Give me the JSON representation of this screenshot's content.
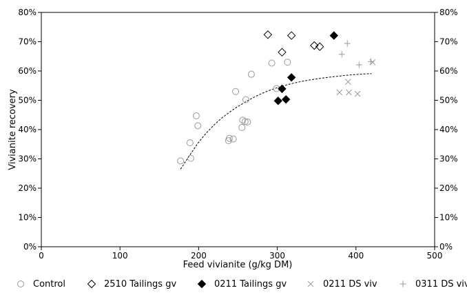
{
  "chart_data": {
    "type": "scatter",
    "title": "",
    "xlabel": "Feed vivianite (g/kg DM)",
    "ylabel": "Vivianite recovery",
    "xlim": [
      0,
      500
    ],
    "ylim": [
      0,
      0.8
    ],
    "x_ticks": [
      0,
      100,
      200,
      300,
      400,
      500
    ],
    "y_ticks": [
      0,
      0.1,
      0.2,
      0.3,
      0.4,
      0.5,
      0.6,
      0.7,
      0.8
    ],
    "x_tick_labels": [
      "0",
      "100",
      "200",
      "300",
      "400",
      "500"
    ],
    "y_tick_labels": [
      "0%",
      "10%",
      "20%",
      "30%",
      "40%",
      "50%",
      "60%",
      "70%",
      "80%"
    ],
    "secondary_y_axis": true,
    "grid": false,
    "legend_position": "bottom",
    "series": [
      {
        "name": "Control",
        "marker": "open-circle",
        "color": "#999999",
        "points": [
          [
            177,
            0.293
          ],
          [
            189,
            0.355
          ],
          [
            190,
            0.302
          ],
          [
            197,
            0.447
          ],
          [
            199,
            0.413
          ],
          [
            238,
            0.362
          ],
          [
            239,
            0.37
          ],
          [
            244,
            0.368
          ],
          [
            247,
            0.53
          ],
          [
            255,
            0.407
          ],
          [
            256,
            0.432
          ],
          [
            259,
            0.427
          ],
          [
            260,
            0.502
          ],
          [
            262,
            0.426
          ],
          [
            267,
            0.589
          ],
          [
            293,
            0.627
          ],
          [
            299,
            0.54
          ],
          [
            313,
            0.63
          ]
        ]
      },
      {
        "name": "2510 Tailings gv",
        "marker": "open-diamond",
        "color": "#000000",
        "points": [
          [
            288,
            0.724
          ],
          [
            306,
            0.664
          ],
          [
            318,
            0.721
          ],
          [
            347,
            0.687
          ],
          [
            354,
            0.683
          ]
        ]
      },
      {
        "name": "0211 Tailings gv",
        "marker": "filled-diamond",
        "color": "#000000",
        "points": [
          [
            301,
            0.498
          ],
          [
            306,
            0.539
          ],
          [
            311,
            0.503
          ],
          [
            318,
            0.578
          ],
          [
            372,
            0.721
          ]
        ]
      },
      {
        "name": "0211 DS viv",
        "marker": "x",
        "color": "#999999",
        "points": [
          [
            379,
            0.527
          ],
          [
            390,
            0.563
          ],
          [
            391,
            0.527
          ],
          [
            402,
            0.522
          ],
          [
            421,
            0.63
          ]
        ]
      },
      {
        "name": "0311 DS viv",
        "marker": "plus",
        "color": "#999999",
        "points": [
          [
            382,
            0.657
          ],
          [
            389,
            0.694
          ],
          [
            404,
            0.621
          ],
          [
            419,
            0.632
          ]
        ]
      }
    ],
    "trendline": {
      "style": "dashed",
      "color": "#000000",
      "points": [
        [
          177,
          0.265
        ],
        [
          190,
          0.318
        ],
        [
          200,
          0.357
        ],
        [
          210,
          0.389
        ],
        [
          220,
          0.417
        ],
        [
          230,
          0.441
        ],
        [
          240,
          0.461
        ],
        [
          250,
          0.479
        ],
        [
          260,
          0.495
        ],
        [
          270,
          0.51
        ],
        [
          280,
          0.523
        ],
        [
          290,
          0.534
        ],
        [
          300,
          0.543
        ],
        [
          310,
          0.551
        ],
        [
          320,
          0.558
        ],
        [
          330,
          0.564
        ],
        [
          340,
          0.569
        ],
        [
          350,
          0.573
        ],
        [
          360,
          0.577
        ],
        [
          370,
          0.58
        ],
        [
          380,
          0.583
        ],
        [
          390,
          0.586
        ],
        [
          400,
          0.588
        ],
        [
          410,
          0.59
        ],
        [
          420,
          0.591
        ]
      ]
    }
  }
}
